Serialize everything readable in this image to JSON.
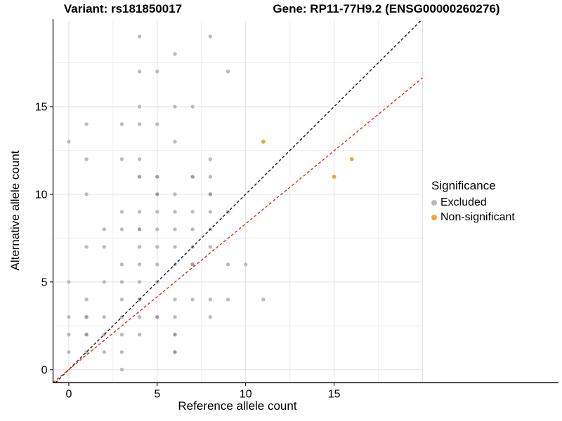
{
  "header": {
    "variant_title": "Variant: rs181850017",
    "gene_title": "Gene: RP11-77H9.2 (ENSG00000260276)"
  },
  "legend": {
    "title": "Significance",
    "items": [
      {
        "label": "Excluded",
        "color": "#b9b9b9"
      },
      {
        "label": "Non-significant",
        "color": "#f6a233"
      }
    ]
  },
  "chart_data": {
    "type": "scatter",
    "title": "",
    "xlabel": "Reference allele count",
    "ylabel": "Alternative allele count",
    "xlim": [
      -0.89,
      20.0
    ],
    "ylim": [
      -0.75,
      19.88
    ],
    "x_ticks": [
      0,
      5,
      10,
      15
    ],
    "y_ticks": [
      0,
      5,
      10,
      15
    ],
    "grid": {
      "major_step": 5,
      "minor_step": 2.5,
      "major_color": "#e2e2e2",
      "minor_color": "#efefef"
    },
    "series": [
      {
        "name": "Excluded",
        "color": "#bcbcbc",
        "dark_color": "#9e9e9e",
        "radius": 2.7,
        "points": [
          [
            3,
            0
          ],
          [
            0,
            1
          ],
          [
            1,
            1
          ],
          [
            2,
            1
          ],
          [
            3,
            1
          ],
          [
            0,
            2
          ],
          [
            1,
            2
          ],
          [
            2,
            2
          ],
          [
            3,
            2
          ],
          [
            4,
            2
          ],
          [
            0,
            3
          ],
          [
            2,
            3
          ],
          [
            3,
            3
          ],
          [
            4,
            3
          ],
          [
            6,
            3
          ],
          [
            8,
            3
          ],
          [
            1,
            4
          ],
          [
            3,
            4
          ],
          [
            6,
            4
          ],
          [
            7,
            4
          ],
          [
            8,
            4
          ],
          [
            9,
            4
          ],
          [
            11,
            4
          ],
          [
            0,
            5
          ],
          [
            2,
            5
          ],
          [
            3,
            5
          ],
          [
            4,
            5
          ],
          [
            5,
            5
          ],
          [
            3,
            6
          ],
          [
            4,
            6
          ],
          [
            5,
            6
          ],
          [
            6,
            6
          ],
          [
            9,
            6
          ],
          [
            10,
            6
          ],
          [
            1,
            7
          ],
          [
            2,
            7
          ],
          [
            4,
            7
          ],
          [
            5,
            7
          ],
          [
            6,
            7
          ],
          [
            7,
            7
          ],
          [
            8,
            7
          ],
          [
            2,
            8
          ],
          [
            3,
            8
          ],
          [
            5,
            8
          ],
          [
            6,
            8
          ],
          [
            7,
            8
          ],
          [
            8,
            8
          ],
          [
            3,
            9
          ],
          [
            4,
            9
          ],
          [
            5,
            9
          ],
          [
            6,
            9
          ],
          [
            7,
            9
          ],
          [
            8,
            9
          ],
          [
            9,
            9
          ],
          [
            1,
            10
          ],
          [
            6,
            10
          ],
          [
            8,
            11
          ],
          [
            1,
            12
          ],
          [
            3,
            12
          ],
          [
            4,
            12
          ],
          [
            8,
            12
          ],
          [
            0,
            13
          ],
          [
            6,
            13
          ],
          [
            1,
            14
          ],
          [
            3,
            14
          ],
          [
            4,
            14
          ],
          [
            5,
            14
          ],
          [
            4,
            15
          ],
          [
            6,
            15
          ],
          [
            7,
            15
          ],
          [
            4,
            17
          ],
          [
            5,
            17
          ],
          [
            9,
            17
          ],
          [
            6,
            18
          ],
          [
            4,
            19
          ],
          [
            8,
            19
          ]
        ],
        "overplotted": [
          [
            6,
            1
          ],
          [
            1,
            2
          ],
          [
            6,
            2
          ],
          [
            1,
            3
          ],
          [
            5,
            3
          ],
          [
            4,
            4
          ],
          [
            7,
            6
          ],
          [
            4,
            8
          ],
          [
            5,
            10
          ],
          [
            8,
            10
          ],
          [
            4,
            11
          ],
          [
            5,
            11
          ],
          [
            7,
            11
          ]
        ]
      },
      {
        "name": "Non-significant",
        "color": "#f6a233",
        "dark_color": "#f6a233",
        "radius": 2.9,
        "points": [
          [
            11,
            13
          ],
          [
            16,
            12
          ],
          [
            15,
            11
          ]
        ],
        "overplotted": []
      }
    ],
    "lines": [
      {
        "name": "identity-line",
        "slope": 1.0,
        "intercept": 0,
        "color": "#1a1a1a",
        "dash": "4 3"
      },
      {
        "name": "fit-line",
        "slope": 0.832,
        "intercept": 0,
        "color": "#e8291c",
        "dash": "4 3"
      }
    ],
    "legend_position": "right"
  }
}
